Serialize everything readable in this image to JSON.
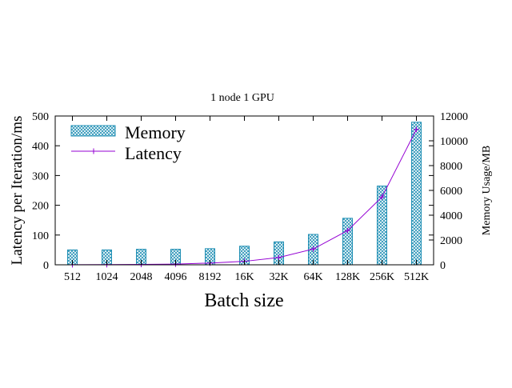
{
  "chart_data": {
    "type": "bar",
    "title": "1 node 1 GPU",
    "xlabel": "Batch size",
    "ylabel": "Latency per Iteration/ms",
    "y2label": "Memory Usage/MB",
    "categories": [
      "512",
      "1024",
      "2048",
      "4096",
      "8192",
      "16K",
      "32K",
      "64K",
      "128K",
      "256K",
      "512K"
    ],
    "ylim": [
      0,
      500
    ],
    "y_ticks": [
      0,
      100,
      200,
      300,
      400,
      500
    ],
    "y2lim": [
      0,
      12000
    ],
    "y2_ticks": [
      0,
      2000,
      4000,
      6000,
      8000,
      10000,
      12000
    ],
    "legend_position": "top-left",
    "grid": false,
    "series": [
      {
        "name": "Memory",
        "kind": "bar",
        "axis": "right",
        "color": "#1f8fb4",
        "values": [
          1200,
          1200,
          1250,
          1250,
          1300,
          1500,
          1850,
          2450,
          3750,
          6350,
          11500
        ]
      },
      {
        "name": "Latency",
        "kind": "line",
        "axis": "left",
        "color": "#9400d3",
        "values": [
          0.5,
          0.7,
          1.2,
          2.5,
          5.8,
          11.6,
          24.6,
          53,
          115,
          228,
          455
        ]
      }
    ]
  }
}
